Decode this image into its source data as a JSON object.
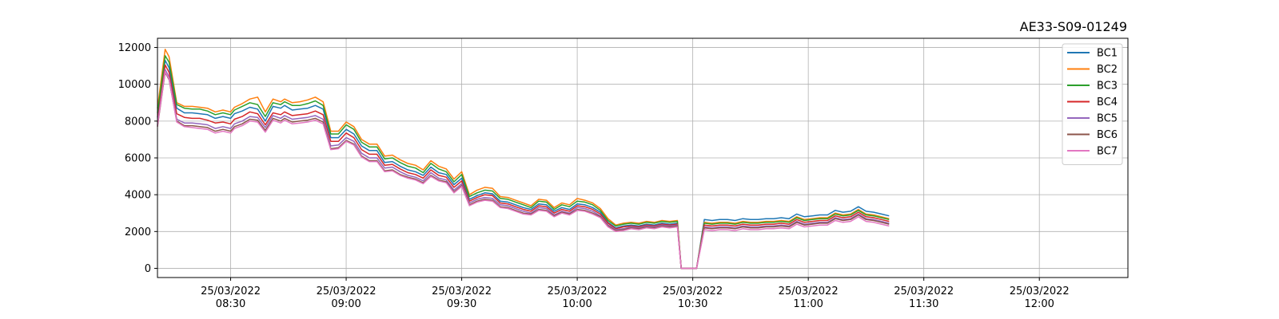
{
  "chart_data": {
    "type": "line",
    "title": "AE33-S09-01249",
    "xlabel": "",
    "ylabel": "",
    "ylim": [
      -500,
      12500
    ],
    "xlim": [
      "2022-03-25 08:11",
      "2022-03-25 12:23"
    ],
    "grid": true,
    "legend_position": "top-right",
    "y_ticks": [
      0,
      2000,
      4000,
      6000,
      8000,
      10000,
      12000
    ],
    "y_tick_labels": [
      "0",
      "2000",
      "4000",
      "6000",
      "8000",
      "10000",
      "12000"
    ],
    "x_ticks": [
      "2022-03-25 08:30",
      "2022-03-25 09:00",
      "2022-03-25 09:30",
      "2022-03-25 10:00",
      "2022-03-25 10:30",
      "2022-03-25 11:00",
      "2022-03-25 11:30",
      "2022-03-25 12:00"
    ],
    "x_tick_labels": [
      [
        "25/03/2022",
        "08:30"
      ],
      [
        "25/03/2022",
        "09:00"
      ],
      [
        "25/03/2022",
        "09:30"
      ],
      [
        "25/03/2022",
        "10:00"
      ],
      [
        "25/03/2022",
        "10:30"
      ],
      [
        "25/03/2022",
        "11:00"
      ],
      [
        "25/03/2022",
        "11:30"
      ],
      [
        "25/03/2022",
        "12:00"
      ]
    ],
    "x": [
      "08:11",
      "08:13",
      "08:14",
      "08:16",
      "08:18",
      "08:20",
      "08:22",
      "08:24",
      "08:26",
      "08:28",
      "08:30",
      "08:31",
      "08:33",
      "08:35",
      "08:37",
      "08:39",
      "08:41",
      "08:43",
      "08:44",
      "08:46",
      "08:48",
      "08:50",
      "08:52",
      "08:54",
      "08:56",
      "08:58",
      "09:00",
      "09:02",
      "09:04",
      "09:06",
      "09:08",
      "09:10",
      "09:12",
      "09:14",
      "09:16",
      "09:18",
      "09:20",
      "09:22",
      "09:24",
      "09:26",
      "09:28",
      "09:30",
      "09:32",
      "09:34",
      "09:36",
      "09:38",
      "09:40",
      "09:42",
      "09:44",
      "09:46",
      "09:48",
      "09:50",
      "09:52",
      "09:54",
      "09:56",
      "09:58",
      "10:00",
      "10:02",
      "10:04",
      "10:06",
      "10:08",
      "10:10",
      "10:12",
      "10:14",
      "10:16",
      "10:18",
      "10:20",
      "10:22"
    ],
    "series": [
      {
        "name": "BC1",
        "color": "#1f77b4",
        "values": [
          8200,
          11300,
          10900,
          8700,
          8450,
          8450,
          8400,
          8350,
          8150,
          8250,
          8150,
          8400,
          8550,
          8750,
          8650,
          8000,
          8800,
          8700,
          8850,
          8600,
          8650,
          8700,
          8850,
          8650,
          7100,
          7100,
          7550,
          7300,
          6650,
          6400,
          6400,
          5750,
          5800,
          5550,
          5350,
          5250,
          5050,
          5500,
          5200,
          5100,
          4550,
          4900,
          3750,
          3950,
          4100,
          4050,
          3650,
          3600,
          3450,
          3300,
          3200,
          3500,
          3450,
          3100,
          3300,
          3200,
          3500,
          3450,
          3300,
          3050,
          2500,
          2200,
          2300,
          2350,
          2300,
          2400,
          2350,
          2450
        ]
      },
      {
        "name": "BC2",
        "color": "#ff7f0e",
        "values": [
          8700,
          11900,
          11500,
          9000,
          8800,
          8800,
          8750,
          8700,
          8500,
          8600,
          8500,
          8750,
          8950,
          9200,
          9300,
          8500,
          9200,
          9050,
          9200,
          9000,
          9050,
          9150,
          9300,
          9050,
          7450,
          7450,
          7950,
          7700,
          7000,
          6750,
          6750,
          6100,
          6150,
          5900,
          5700,
          5600,
          5350,
          5850,
          5550,
          5400,
          4850,
          5250,
          4000,
          4250,
          4400,
          4350,
          3900,
          3850,
          3700,
          3550,
          3400,
          3750,
          3700,
          3300,
          3550,
          3450,
          3800,
          3700,
          3550,
          3250,
          2700,
          2350,
          2450,
          2500,
          2450,
          2550,
          2500,
          2600
        ]
      },
      {
        "name": "BC3",
        "color": "#2ca02c",
        "values": [
          8450,
          11550,
          11200,
          8900,
          8700,
          8650,
          8650,
          8550,
          8350,
          8450,
          8350,
          8600,
          8800,
          9000,
          8900,
          8250,
          9000,
          8900,
          9050,
          8850,
          8850,
          8950,
          9100,
          8850,
          7300,
          7300,
          7800,
          7550,
          6850,
          6600,
          6600,
          5950,
          6000,
          5750,
          5550,
          5450,
          5200,
          5700,
          5400,
          5250,
          4700,
          5100,
          3900,
          4100,
          4250,
          4200,
          3800,
          3750,
          3600,
          3450,
          3300,
          3650,
          3600,
          3200,
          3450,
          3350,
          3650,
          3600,
          3450,
          3150,
          2600,
          2300,
          2400,
          2450,
          2400,
          2500,
          2450,
          2550
        ]
      },
      {
        "name": "BC4",
        "color": "#d62728",
        "values": [
          7950,
          11050,
          10650,
          8400,
          8200,
          8150,
          8150,
          8050,
          7900,
          7950,
          7850,
          8100,
          8250,
          8500,
          8400,
          7800,
          8450,
          8350,
          8500,
          8300,
          8350,
          8400,
          8550,
          8350,
          6900,
          6900,
          7350,
          7100,
          6450,
          6200,
          6200,
          5600,
          5650,
          5400,
          5200,
          5100,
          4900,
          5350,
          5050,
          4950,
          4400,
          4750,
          3650,
          3850,
          4000,
          3950,
          3550,
          3500,
          3350,
          3200,
          3100,
          3400,
          3350,
          3000,
          3200,
          3100,
          3400,
          3350,
          3200,
          2950,
          2450,
          2150,
          2250,
          2300,
          2250,
          2350,
          2300,
          2400
        ]
      },
      {
        "name": "BC5",
        "color": "#9467bd",
        "values": [
          7800,
          10800,
          10400,
          8100,
          7900,
          7900,
          7850,
          7800,
          7600,
          7700,
          7600,
          7850,
          8000,
          8250,
          8200,
          7650,
          8300,
          8150,
          8300,
          8100,
          8150,
          8200,
          8300,
          8100,
          6650,
          6700,
          7100,
          6900,
          6250,
          6000,
          6000,
          5450,
          5500,
          5250,
          5050,
          4950,
          4750,
          5200,
          4900,
          4800,
          4250,
          4600,
          3550,
          3750,
          3850,
          3800,
          3450,
          3400,
          3250,
          3100,
          3000,
          3300,
          3250,
          2900,
          3100,
          3000,
          3300,
          3250,
          3100,
          2850,
          2350,
          2100,
          2150,
          2250,
          2200,
          2300,
          2250,
          2350
        ]
      },
      {
        "name": "BC6",
        "color": "#8c564b",
        "values": [
          7700,
          10650,
          10250,
          8000,
          7750,
          7750,
          7700,
          7650,
          7450,
          7550,
          7450,
          7700,
          7850,
          8100,
          8050,
          7500,
          8150,
          8000,
          8150,
          7950,
          8000,
          8050,
          8150,
          7950,
          6500,
          6550,
          6950,
          6750,
          6100,
          5850,
          5850,
          5300,
          5350,
          5100,
          4950,
          4850,
          4650,
          5050,
          4800,
          4700,
          4150,
          4500,
          3450,
          3650,
          3750,
          3700,
          3350,
          3300,
          3150,
          3000,
          2950,
          3200,
          3150,
          2850,
          3050,
          2950,
          3200,
          3150,
          3000,
          2800,
          2300,
          2050,
          2100,
          2200,
          2150,
          2250,
          2200,
          2300
        ]
      },
      {
        "name": "BC7",
        "color": "#e377c2",
        "values": [
          7750,
          10700,
          10300,
          7950,
          7700,
          7650,
          7600,
          7550,
          7350,
          7450,
          7350,
          7600,
          7750,
          8000,
          7950,
          7400,
          8050,
          7900,
          8050,
          7850,
          7900,
          7950,
          8050,
          7850,
          6450,
          6500,
          6900,
          6700,
          6050,
          5800,
          5800,
          5250,
          5300,
          5050,
          4900,
          4800,
          4600,
          5000,
          4750,
          4650,
          4100,
          4450,
          3400,
          3600,
          3700,
          3650,
          3300,
          3250,
          3100,
          2950,
          2900,
          3150,
          3100,
          2800,
          3000,
          2900,
          3150,
          3100,
          2950,
          2750,
          2250,
          2000,
          2050,
          2150,
          2100,
          2200,
          2150,
          2250
        ]
      }
    ],
    "x2": [
      "10:24",
      "10:26",
      "10:27",
      "10:29",
      "10:31",
      "10:33",
      "10:35",
      "10:37",
      "10:39",
      "10:41",
      "10:43",
      "10:45",
      "10:47",
      "10:49",
      "10:51",
      "10:53",
      "10:55",
      "10:57",
      "10:59",
      "11:01",
      "11:03",
      "11:05",
      "11:07",
      "11:09",
      "11:11",
      "11:13",
      "11:15",
      "11:17",
      "11:19",
      "11:21"
    ],
    "series_tail": [
      {
        "name": "BC1",
        "values": [
          2400,
          2450,
          0,
          0,
          0,
          2650,
          2600,
          2650,
          2650,
          2600,
          2700,
          2650,
          2650,
          2700,
          2700,
          2750,
          2700,
          2950,
          2800,
          2850,
          2900,
          2900,
          3150,
          3050,
          3100,
          3350,
          3100,
          3050,
          2950,
          2850
        ]
      },
      {
        "name": "BC2",
        "values": [
          2550,
          2600,
          0,
          0,
          0,
          2500,
          2450,
          2500,
          2500,
          2450,
          2550,
          2500,
          2500,
          2550,
          2550,
          2600,
          2550,
          2800,
          2650,
          2700,
          2750,
          2750,
          3000,
          2900,
          2950,
          3200,
          2950,
          2900,
          2800,
          2700
        ]
      },
      {
        "name": "BC3",
        "values": [
          2500,
          2550,
          0,
          0,
          0,
          2450,
          2400,
          2450,
          2450,
          2400,
          2500,
          2450,
          2450,
          2500,
          2500,
          2550,
          2500,
          2750,
          2600,
          2650,
          2700,
          2700,
          2950,
          2850,
          2900,
          3150,
          2900,
          2850,
          2750,
          2650
        ]
      },
      {
        "name": "BC4",
        "values": [
          2350,
          2400,
          0,
          0,
          0,
          2350,
          2300,
          2350,
          2350,
          2300,
          2400,
          2350,
          2350,
          2400,
          2400,
          2450,
          2400,
          2650,
          2500,
          2550,
          2600,
          2600,
          2850,
          2750,
          2800,
          3050,
          2800,
          2750,
          2650,
          2550
        ]
      },
      {
        "name": "BC5",
        "values": [
          2300,
          2350,
          0,
          0,
          0,
          2250,
          2200,
          2250,
          2250,
          2200,
          2300,
          2250,
          2250,
          2300,
          2300,
          2350,
          2300,
          2550,
          2400,
          2450,
          2500,
          2500,
          2750,
          2650,
          2700,
          2950,
          2700,
          2650,
          2550,
          2450
        ]
      },
      {
        "name": "BC6",
        "values": [
          2250,
          2300,
          0,
          0,
          0,
          2200,
          2150,
          2200,
          2200,
          2150,
          2250,
          2200,
          2200,
          2250,
          2250,
          2300,
          2250,
          2500,
          2350,
          2400,
          2450,
          2450,
          2700,
          2600,
          2650,
          2900,
          2650,
          2600,
          2500,
          2400
        ]
      },
      {
        "name": "BC7",
        "values": [
          2200,
          2250,
          0,
          0,
          0,
          2100,
          2050,
          2100,
          2100,
          2050,
          2150,
          2100,
          2100,
          2150,
          2150,
          2200,
          2150,
          2400,
          2250,
          2300,
          2350,
          2350,
          2600,
          2500,
          2550,
          2800,
          2550,
          2500,
          2400,
          2300
        ]
      }
    ]
  }
}
